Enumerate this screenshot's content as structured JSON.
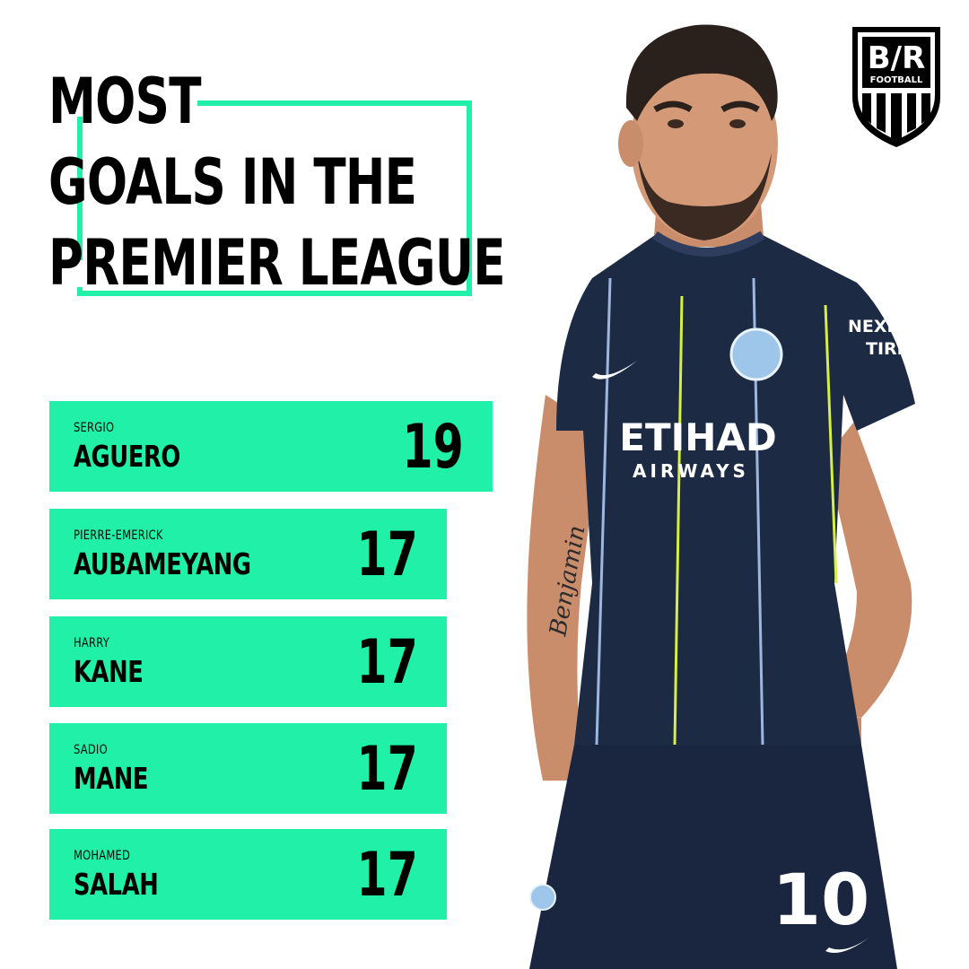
{
  "header": {
    "title_lines": [
      "MOST",
      "GOALS IN THE",
      "PREMIER LEAGUE"
    ]
  },
  "brand": {
    "logo_text": "B/R",
    "logo_sub": "FOOTBALL",
    "accent_color": "#21f0a8"
  },
  "leaderboard": {
    "rows": [
      {
        "first": "SERGIO",
        "last": "AGUERO",
        "goals": "19"
      },
      {
        "first": "PIERRE-EMERICK",
        "last": "AUBAMEYANG",
        "goals": "17"
      },
      {
        "first": "HARRY",
        "last": "KANE",
        "goals": "17"
      },
      {
        "first": "SADIO",
        "last": "MANE",
        "goals": "17"
      },
      {
        "first": "MOHAMED",
        "last": "SALAH",
        "goals": "17"
      }
    ]
  },
  "photo": {
    "sponsor_line1": "ETIHAD",
    "sponsor_line2": "AIRWAYS",
    "shirt_number": "10",
    "sleeve_text1": "NEXEN",
    "sleeve_text2": "TIRE",
    "tattoo_text": "Benjamin"
  }
}
